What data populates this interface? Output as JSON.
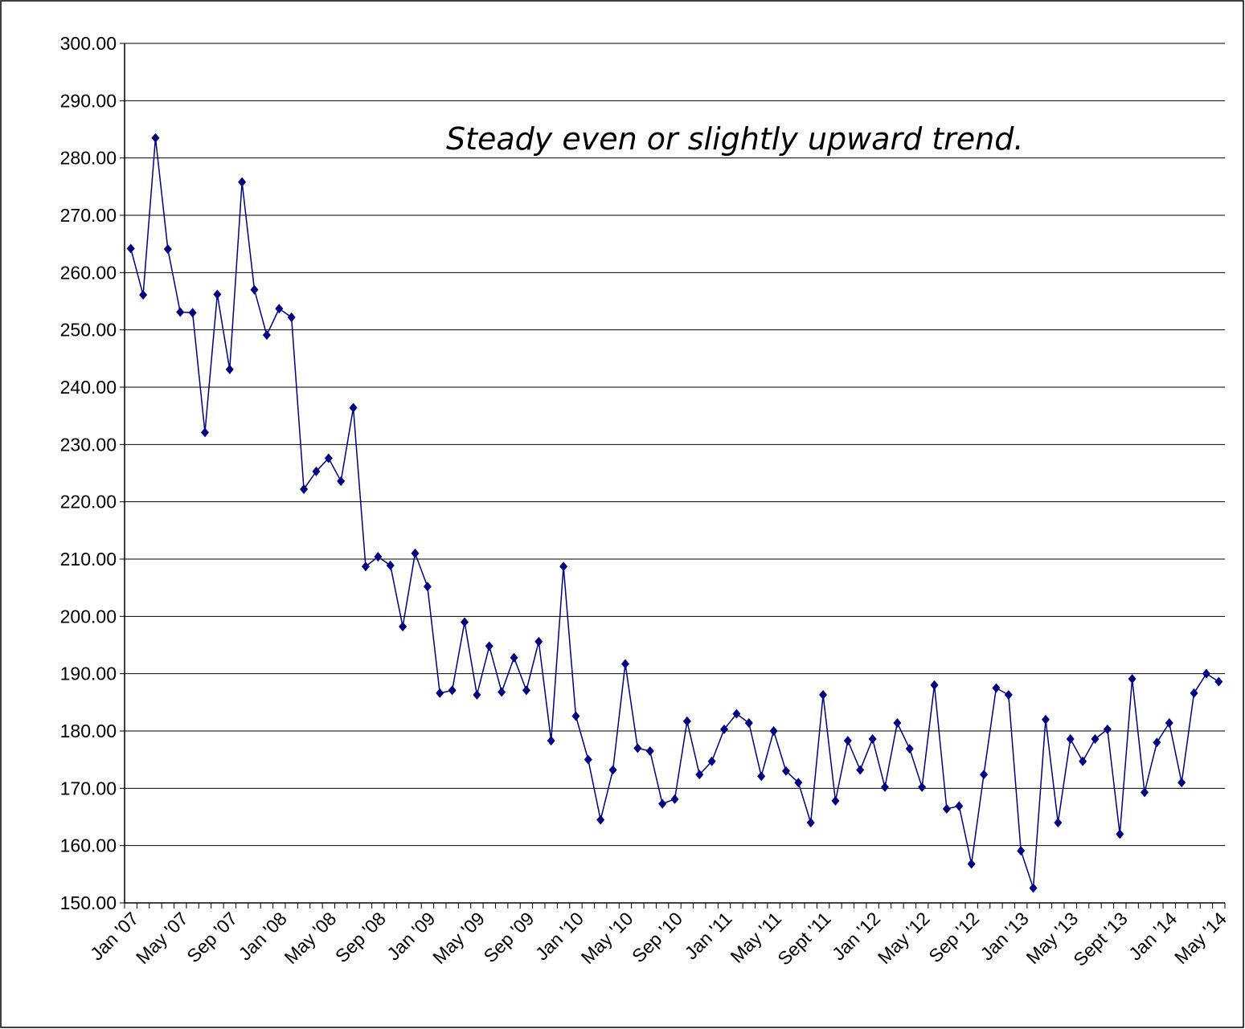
{
  "chart_data": {
    "type": "line",
    "annotation": "Steady even or slightly upward trend.",
    "categories": [
      "Jan '07",
      null,
      null,
      null,
      "May '07",
      null,
      null,
      null,
      "Sep '07",
      null,
      null,
      null,
      "Jan '08",
      null,
      null,
      null,
      "May '08",
      null,
      null,
      null,
      "Sep '08",
      null,
      null,
      null,
      "Jan '09",
      null,
      null,
      null,
      "May '09",
      null,
      null,
      null,
      "Sep '09",
      null,
      null,
      null,
      "Jan '10",
      null,
      null,
      null,
      "May '10",
      null,
      null,
      null,
      "Sep '10",
      null,
      null,
      null,
      "Jan '11",
      null,
      null,
      null,
      "May '11",
      null,
      null,
      null,
      "Sept '11",
      null,
      null,
      null,
      "Jan '12",
      null,
      null,
      null,
      "May '12",
      null,
      null,
      null,
      "Sep '12",
      null,
      null,
      null,
      "Jan '13",
      null,
      null,
      null,
      "May '13",
      null,
      null,
      null,
      "Sept '13",
      null,
      null,
      null,
      "Jan '14",
      null,
      null,
      null,
      "May '14"
    ],
    "values": [
      264.2,
      256.1,
      283.5,
      264.1,
      253.1,
      253.0,
      232.1,
      256.2,
      243.1,
      275.8,
      257.0,
      249.1,
      253.7,
      252.2,
      222.2,
      225.3,
      227.6,
      223.6,
      236.4,
      208.7,
      210.4,
      208.9,
      198.2,
      211.0,
      205.2,
      186.6,
      187.1,
      199.0,
      186.3,
      194.8,
      186.8,
      192.8,
      187.1,
      195.6,
      178.3,
      208.7,
      182.6,
      175.0,
      164.5,
      173.2,
      191.7,
      177.0,
      176.5,
      167.3,
      168.1,
      181.7,
      172.4,
      174.7,
      180.3,
      183.0,
      181.4,
      172.1,
      180.0,
      173.0,
      171.0,
      164.0,
      186.3,
      167.8,
      178.3,
      173.2,
      178.6,
      170.2,
      181.4,
      176.9,
      170.2,
      188.0,
      166.4,
      166.9,
      156.8,
      172.4,
      187.5,
      186.3,
      159.1,
      152.6,
      182.0,
      164.0,
      178.6,
      174.7,
      178.6,
      180.3,
      162.0,
      189.1,
      169.3,
      178.0,
      181.4,
      171.0,
      186.6,
      190.0,
      188.6
    ],
    "color": "#000080",
    "ylim": [
      150,
      300
    ],
    "yticks": [
      {
        "value": 150,
        "label": "150.00"
      },
      {
        "value": 160,
        "label": "160.00"
      },
      {
        "value": 170,
        "label": "170.00"
      },
      {
        "value": 180,
        "label": "180.00"
      },
      {
        "value": 190,
        "label": "190.00"
      },
      {
        "value": 200,
        "label": "200.00"
      },
      {
        "value": 210,
        "label": "210.00"
      },
      {
        "value": 220,
        "label": "220.00"
      },
      {
        "value": 230,
        "label": "230.00"
      },
      {
        "value": 240,
        "label": "240.00"
      },
      {
        "value": 250,
        "label": "250.00"
      },
      {
        "value": 260,
        "label": "260.00"
      },
      {
        "value": 270,
        "label": "270.00"
      },
      {
        "value": 280,
        "label": "280.00"
      },
      {
        "value": 290,
        "label": "290.00"
      },
      {
        "value": 300,
        "label": "300.00"
      }
    ],
    "grid": true
  }
}
